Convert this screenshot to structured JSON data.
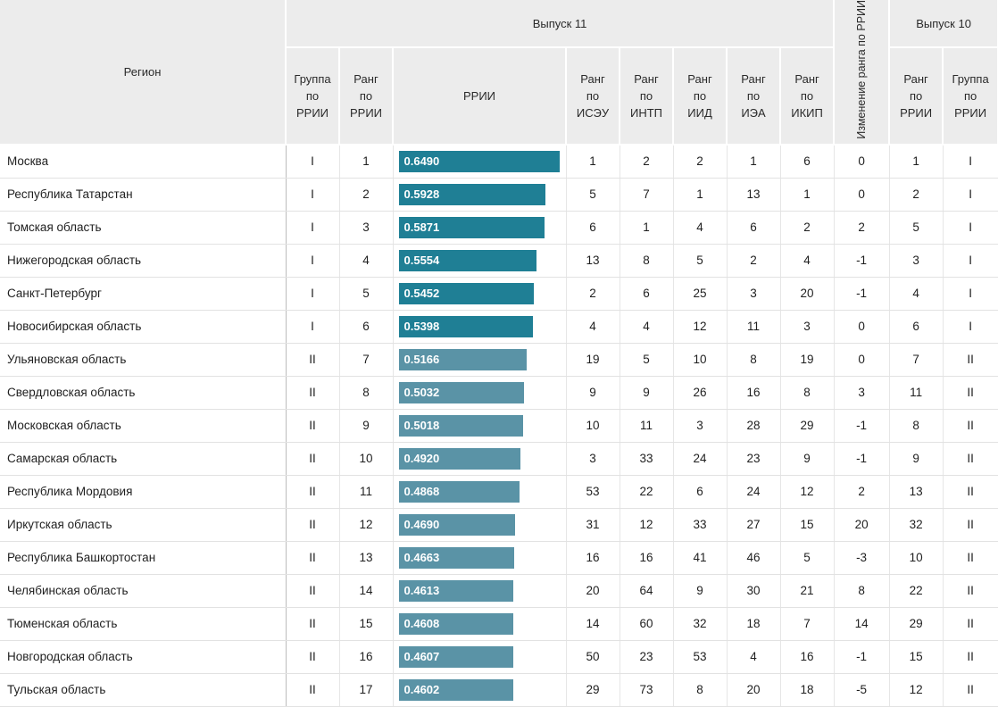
{
  "header": {
    "region": "Регион",
    "issue11": "Выпуск 11",
    "issue10": "Выпуск 10",
    "change": "Изменение ранга по РРИИ",
    "cols": {
      "group": [
        "Группа",
        "по",
        "РРИИ"
      ],
      "rank": [
        "Ранг",
        "по",
        "РРИИ"
      ],
      "rrii": "РРИИ",
      "isEu": [
        "Ранг",
        "по",
        "ИСЭУ"
      ],
      "intp": [
        "Ранг",
        "по",
        "ИНТП"
      ],
      "iid": [
        "Ранг",
        "по",
        "ИИД"
      ],
      "iea": [
        "Ранг",
        "по",
        "ИЭА"
      ],
      "ikip": [
        "Ранг",
        "по",
        "ИКИП"
      ],
      "rank10": [
        "Ранг",
        "по",
        "РРИИ"
      ],
      "group10": [
        "Группа",
        "по",
        "РРИИ"
      ]
    }
  },
  "colors": {
    "group1_bar": "#1f7f95",
    "group2_bar": "#5a93a6"
  },
  "rows": [
    {
      "region": "Москва",
      "group": "I",
      "rank": "1",
      "rrii": "0.6490",
      "v": 0.649,
      "isEu": "1",
      "intp": "2",
      "iid": "2",
      "iea": "1",
      "ikip": "6",
      "change": "0",
      "rank10": "1",
      "group10": "I"
    },
    {
      "region": "Республика Татарстан",
      "group": "I",
      "rank": "2",
      "rrii": "0.5928",
      "v": 0.5928,
      "isEu": "5",
      "intp": "7",
      "iid": "1",
      "iea": "13",
      "ikip": "1",
      "change": "0",
      "rank10": "2",
      "group10": "I"
    },
    {
      "region": "Томская область",
      "group": "I",
      "rank": "3",
      "rrii": "0.5871",
      "v": 0.5871,
      "isEu": "6",
      "intp": "1",
      "iid": "4",
      "iea": "6",
      "ikip": "2",
      "change": "2",
      "rank10": "5",
      "group10": "I"
    },
    {
      "region": "Нижегородская область",
      "group": "I",
      "rank": "4",
      "rrii": "0.5554",
      "v": 0.5554,
      "isEu": "13",
      "intp": "8",
      "iid": "5",
      "iea": "2",
      "ikip": "4",
      "change": "-1",
      "rank10": "3",
      "group10": "I"
    },
    {
      "region": "Санкт-Петербург",
      "group": "I",
      "rank": "5",
      "rrii": "0.5452",
      "v": 0.5452,
      "isEu": "2",
      "intp": "6",
      "iid": "25",
      "iea": "3",
      "ikip": "20",
      "change": "-1",
      "rank10": "4",
      "group10": "I"
    },
    {
      "region": "Новосибирская область",
      "group": "I",
      "rank": "6",
      "rrii": "0.5398",
      "v": 0.5398,
      "isEu": "4",
      "intp": "4",
      "iid": "12",
      "iea": "11",
      "ikip": "3",
      "change": "0",
      "rank10": "6",
      "group10": "I"
    },
    {
      "region": "Ульяновская область",
      "group": "II",
      "rank": "7",
      "rrii": "0.5166",
      "v": 0.5166,
      "isEu": "19",
      "intp": "5",
      "iid": "10",
      "iea": "8",
      "ikip": "19",
      "change": "0",
      "rank10": "7",
      "group10": "II"
    },
    {
      "region": "Свердловская область",
      "group": "II",
      "rank": "8",
      "rrii": "0.5032",
      "v": 0.5032,
      "isEu": "9",
      "intp": "9",
      "iid": "26",
      "iea": "16",
      "ikip": "8",
      "change": "3",
      "rank10": "11",
      "group10": "II"
    },
    {
      "region": "Московская область",
      "group": "II",
      "rank": "9",
      "rrii": "0.5018",
      "v": 0.5018,
      "isEu": "10",
      "intp": "11",
      "iid": "3",
      "iea": "28",
      "ikip": "29",
      "change": "-1",
      "rank10": "8",
      "group10": "II"
    },
    {
      "region": "Самарская область",
      "group": "II",
      "rank": "10",
      "rrii": "0.4920",
      "v": 0.492,
      "isEu": "3",
      "intp": "33",
      "iid": "24",
      "iea": "23",
      "ikip": "9",
      "change": "-1",
      "rank10": "9",
      "group10": "II"
    },
    {
      "region": "Республика Мордовия",
      "group": "II",
      "rank": "11",
      "rrii": "0.4868",
      "v": 0.4868,
      "isEu": "53",
      "intp": "22",
      "iid": "6",
      "iea": "24",
      "ikip": "12",
      "change": "2",
      "rank10": "13",
      "group10": "II"
    },
    {
      "region": "Иркутская область",
      "group": "II",
      "rank": "12",
      "rrii": "0.4690",
      "v": 0.469,
      "isEu": "31",
      "intp": "12",
      "iid": "33",
      "iea": "27",
      "ikip": "15",
      "change": "20",
      "rank10": "32",
      "group10": "II"
    },
    {
      "region": "Республика Башкортостан",
      "group": "II",
      "rank": "13",
      "rrii": "0.4663",
      "v": 0.4663,
      "isEu": "16",
      "intp": "16",
      "iid": "41",
      "iea": "46",
      "ikip": "5",
      "change": "-3",
      "rank10": "10",
      "group10": "II"
    },
    {
      "region": "Челябинская область",
      "group": "II",
      "rank": "14",
      "rrii": "0.4613",
      "v": 0.4613,
      "isEu": "20",
      "intp": "64",
      "iid": "9",
      "iea": "30",
      "ikip": "21",
      "change": "8",
      "rank10": "22",
      "group10": "II"
    },
    {
      "region": "Тюменская область",
      "group": "II",
      "rank": "15",
      "rrii": "0.4608",
      "v": 0.4608,
      "isEu": "14",
      "intp": "60",
      "iid": "32",
      "iea": "18",
      "ikip": "7",
      "change": "14",
      "rank10": "29",
      "group10": "II"
    },
    {
      "region": "Новгородская область",
      "group": "II",
      "rank": "16",
      "rrii": "0.4607",
      "v": 0.4607,
      "isEu": "50",
      "intp": "23",
      "iid": "53",
      "iea": "4",
      "ikip": "16",
      "change": "-1",
      "rank10": "15",
      "group10": "II"
    },
    {
      "region": "Тульская область",
      "group": "II",
      "rank": "17",
      "rrii": "0.4602",
      "v": 0.4602,
      "isEu": "29",
      "intp": "73",
      "iid": "8",
      "iea": "20",
      "ikip": "18",
      "change": "-5",
      "rank10": "12",
      "group10": "II"
    }
  ]
}
